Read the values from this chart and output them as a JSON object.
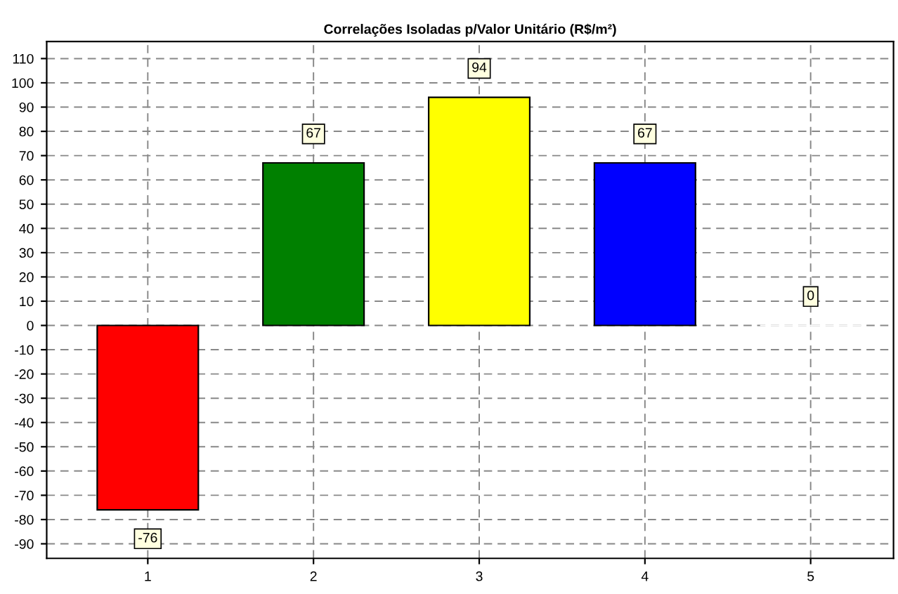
{
  "chart_data": {
    "type": "bar",
    "title": "Correlações Isoladas p/Valor Unitário (R$/m²)",
    "categories": [
      "1",
      "2",
      "3",
      "4",
      "5"
    ],
    "values": [
      -76,
      67,
      94,
      67,
      0
    ],
    "colors": [
      "#ff0000",
      "#008000",
      "#ffff00",
      "#0000ff",
      "#ffffff"
    ],
    "ylim": [
      -96,
      117
    ],
    "yticks": [
      -90,
      -80,
      -70,
      -60,
      -50,
      -40,
      -30,
      -20,
      -10,
      0,
      10,
      20,
      30,
      40,
      50,
      60,
      70,
      80,
      90,
      100,
      110
    ],
    "grid": true,
    "data_labels": true
  }
}
